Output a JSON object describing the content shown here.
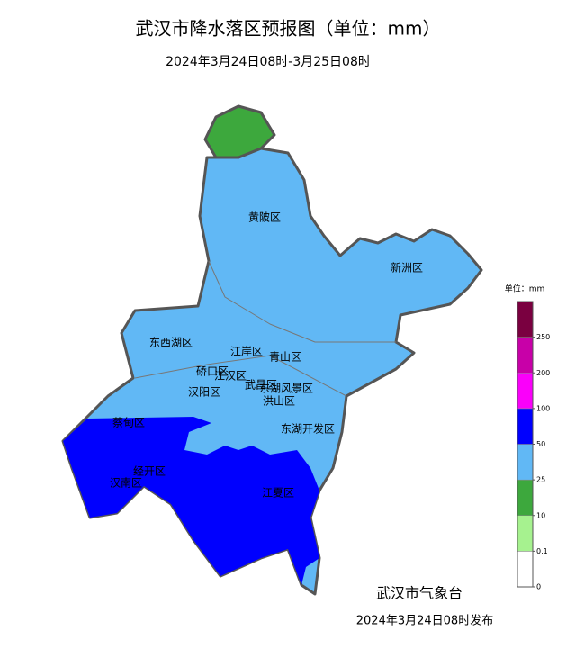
{
  "header": {
    "title": "武汉市降水落区预报图（单位：mm）",
    "subtitle": "2024年3月24日08时-3月25日08时"
  },
  "districts": [
    "黄陂区",
    "新洲区",
    "东西湖区",
    "江岸区",
    "青山区",
    "硚口区",
    "江汉区",
    "汉阳区",
    "武昌区",
    "东湖风景区",
    "洪山区",
    "蔡甸区",
    "东湖开发区",
    "经开区",
    "汉南区",
    "江夏区"
  ],
  "legend": {
    "title": "单位：mm",
    "ticks": [
      0,
      0.1,
      10,
      25,
      50,
      100,
      200,
      250
    ],
    "colors": [
      "#ffffff",
      "#a6f28f",
      "#3da83d",
      "#61b8f5",
      "#0000fe",
      "#fa00fa",
      "#c800a8",
      "#7a0040"
    ]
  },
  "footer": {
    "issuer": "武汉市气象台",
    "issued": "2024年3月24日08时发布"
  }
}
